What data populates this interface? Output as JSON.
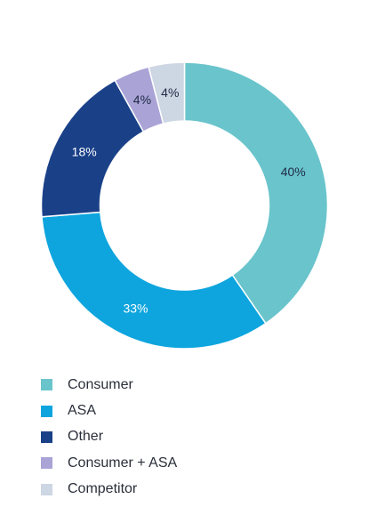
{
  "chart_data": {
    "type": "pie",
    "variant": "donut",
    "categories": [
      "Consumer",
      "ASA",
      "Other",
      "Consumer + ASA",
      "Competitor"
    ],
    "values": [
      40,
      33,
      18,
      4,
      4
    ],
    "labels": [
      "40%",
      "33%",
      "18%",
      "4%",
      "4%"
    ],
    "colors": [
      "#6ac4cc",
      "#0ea5de",
      "#1a4188",
      "#a9a3d6",
      "#cdd6e3"
    ],
    "label_colors": [
      "#1f2a44",
      "#ffffff",
      "#ffffff",
      "#1f2a44",
      "#1f2a44"
    ],
    "start_angle_deg": 0,
    "direction": "clockwise",
    "legend_position": "bottom-left"
  }
}
